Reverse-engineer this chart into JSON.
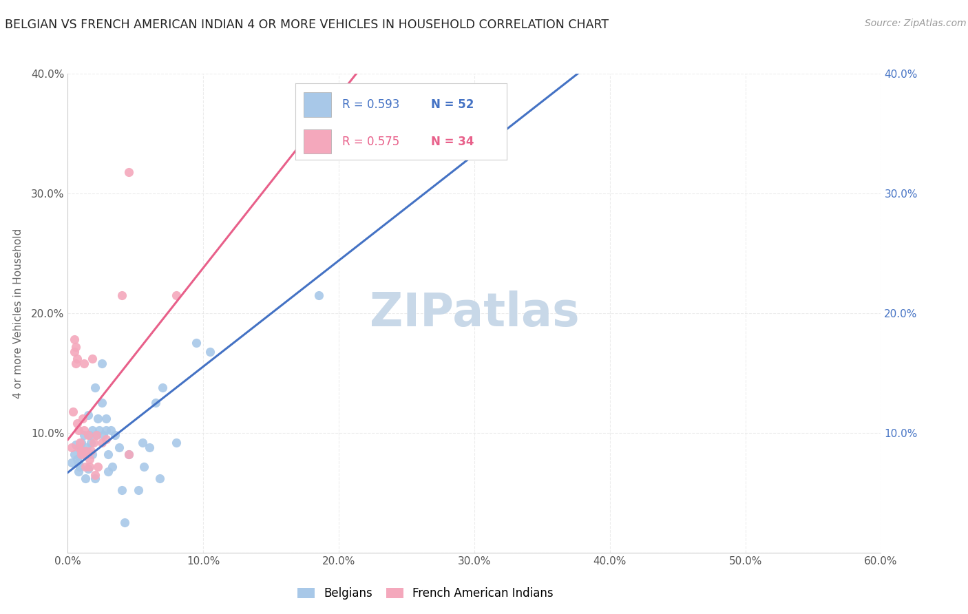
{
  "title": "BELGIAN VS FRENCH AMERICAN INDIAN 4 OR MORE VEHICLES IN HOUSEHOLD CORRELATION CHART",
  "source": "Source: ZipAtlas.com",
  "ylabel": "4 or more Vehicles in Household",
  "xlim": [
    0.0,
    0.6
  ],
  "ylim": [
    0.0,
    0.4
  ],
  "xticks": [
    0.0,
    0.1,
    0.2,
    0.3,
    0.4,
    0.5,
    0.6
  ],
  "yticks": [
    0.0,
    0.1,
    0.2,
    0.3,
    0.4
  ],
  "xticklabels": [
    "0.0%",
    "10.0%",
    "20.0%",
    "30.0%",
    "40.0%",
    "50.0%",
    "60.0%"
  ],
  "yticklabels": [
    "",
    "10.0%",
    "20.0%",
    "30.0%",
    "40.0%"
  ],
  "belgian_color": "#a8c8e8",
  "french_color": "#f4a8bc",
  "belgian_line_color": "#4472c4",
  "french_line_color": "#e8608a",
  "dash_line_color": "#c8b8b8",
  "R_belgian": 0.593,
  "N_belgian": 52,
  "R_french": 0.575,
  "N_french": 34,
  "legend_label_belgian": "Belgians",
  "legend_label_french": "French American Indians",
  "belgian_scatter": [
    [
      0.003,
      0.075
    ],
    [
      0.005,
      0.082
    ],
    [
      0.006,
      0.09
    ],
    [
      0.007,
      0.078
    ],
    [
      0.008,
      0.075
    ],
    [
      0.008,
      0.068
    ],
    [
      0.009,
      0.088
    ],
    [
      0.009,
      0.072
    ],
    [
      0.01,
      0.092
    ],
    [
      0.01,
      0.082
    ],
    [
      0.011,
      0.085
    ],
    [
      0.012,
      0.098
    ],
    [
      0.013,
      0.062
    ],
    [
      0.013,
      0.085
    ],
    [
      0.014,
      0.088
    ],
    [
      0.015,
      0.115
    ],
    [
      0.015,
      0.07
    ],
    [
      0.016,
      0.098
    ],
    [
      0.017,
      0.092
    ],
    [
      0.018,
      0.102
    ],
    [
      0.018,
      0.082
    ],
    [
      0.02,
      0.138
    ],
    [
      0.02,
      0.062
    ],
    [
      0.021,
      0.098
    ],
    [
      0.022,
      0.112
    ],
    [
      0.023,
      0.102
    ],
    [
      0.025,
      0.125
    ],
    [
      0.025,
      0.158
    ],
    [
      0.026,
      0.098
    ],
    [
      0.028,
      0.112
    ],
    [
      0.028,
      0.102
    ],
    [
      0.03,
      0.082
    ],
    [
      0.03,
      0.068
    ],
    [
      0.032,
      0.102
    ],
    [
      0.033,
      0.072
    ],
    [
      0.035,
      0.098
    ],
    [
      0.038,
      0.088
    ],
    [
      0.04,
      0.052
    ],
    [
      0.042,
      0.025
    ],
    [
      0.045,
      0.082
    ],
    [
      0.052,
      0.052
    ],
    [
      0.055,
      0.092
    ],
    [
      0.056,
      0.072
    ],
    [
      0.06,
      0.088
    ],
    [
      0.065,
      0.125
    ],
    [
      0.068,
      0.062
    ],
    [
      0.07,
      0.138
    ],
    [
      0.08,
      0.092
    ],
    [
      0.095,
      0.175
    ],
    [
      0.105,
      0.168
    ],
    [
      0.185,
      0.215
    ],
    [
      0.235,
      0.348
    ]
  ],
  "french_scatter": [
    [
      0.003,
      0.088
    ],
    [
      0.004,
      0.118
    ],
    [
      0.005,
      0.168
    ],
    [
      0.005,
      0.178
    ],
    [
      0.006,
      0.158
    ],
    [
      0.006,
      0.172
    ],
    [
      0.007,
      0.162
    ],
    [
      0.007,
      0.108
    ],
    [
      0.008,
      0.088
    ],
    [
      0.008,
      0.102
    ],
    [
      0.009,
      0.092
    ],
    [
      0.01,
      0.085
    ],
    [
      0.01,
      0.082
    ],
    [
      0.011,
      0.112
    ],
    [
      0.012,
      0.158
    ],
    [
      0.012,
      0.102
    ],
    [
      0.013,
      0.072
    ],
    [
      0.013,
      0.085
    ],
    [
      0.014,
      0.082
    ],
    [
      0.015,
      0.098
    ],
    [
      0.016,
      0.072
    ],
    [
      0.016,
      0.078
    ],
    [
      0.017,
      0.085
    ],
    [
      0.018,
      0.162
    ],
    [
      0.019,
      0.092
    ],
    [
      0.02,
      0.065
    ],
    [
      0.021,
      0.098
    ],
    [
      0.022,
      0.072
    ],
    [
      0.025,
      0.092
    ],
    [
      0.028,
      0.095
    ],
    [
      0.04,
      0.215
    ],
    [
      0.045,
      0.082
    ],
    [
      0.045,
      0.318
    ],
    [
      0.08,
      0.215
    ]
  ],
  "background_color": "#ffffff",
  "grid_color": "#e8e8e8",
  "title_color": "#222222",
  "tick_color_right": "#4472c4",
  "watermark_color": "#c8d8e8"
}
